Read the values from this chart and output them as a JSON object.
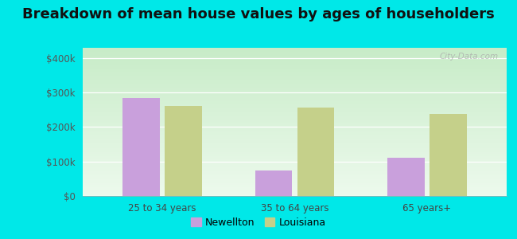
{
  "title": "Breakdown of mean house values by ages of householders",
  "categories": [
    "25 to 34 years",
    "35 to 64 years",
    "65 years+"
  ],
  "newellton": [
    285000,
    75000,
    112000
  ],
  "louisiana": [
    262000,
    257000,
    238000
  ],
  "newellton_color": "#c9a0dc",
  "louisiana_color": "#c5d08a",
  "background_outer": "#00e8e8",
  "background_inner_top": "#d6f0d6",
  "background_inner_bottom": "#f0faf0",
  "yticks": [
    0,
    100000,
    200000,
    300000,
    400000
  ],
  "ytick_labels": [
    "$0",
    "$100k",
    "$200k",
    "$300k",
    "$400k"
  ],
  "ylim": [
    0,
    430000
  ],
  "legend_newellton": "Newellton",
  "legend_louisiana": "Louisiana",
  "title_fontsize": 13,
  "bar_width": 0.28,
  "watermark": "City-Data.com"
}
